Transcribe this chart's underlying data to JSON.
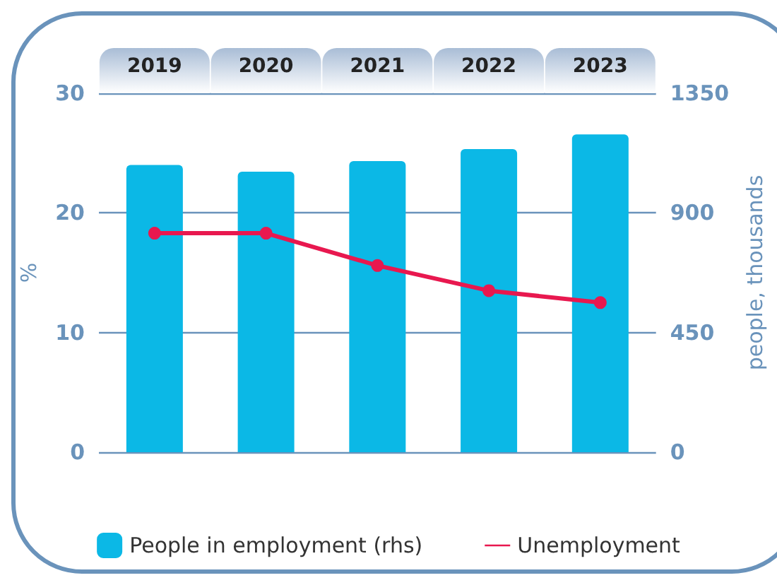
{
  "chart_data": {
    "type": "bar",
    "categories": [
      "2019",
      "2020",
      "2021",
      "2022",
      "2023"
    ],
    "series": [
      {
        "name": "People in employment (rhs)",
        "axis": "y2",
        "color": "#0bb8e6",
        "values": [
          1080,
          1055,
          1095,
          1140,
          1195
        ]
      },
      {
        "name": "Unemployment",
        "type": "line",
        "color": "#e8184f",
        "marker": "circle",
        "values": [
          18.3,
          18.3,
          15.6,
          13.5,
          12.5
        ]
      }
    ],
    "ylabel": "%",
    "y2label": "people, thousands",
    "ylim": [
      0,
      30
    ],
    "yticks": [
      0,
      10,
      20,
      30
    ],
    "y2lim": [
      0,
      1350
    ],
    "y2ticks": [
      0,
      450,
      900,
      1350
    ],
    "grid": "y",
    "legend": "bottom"
  }
}
